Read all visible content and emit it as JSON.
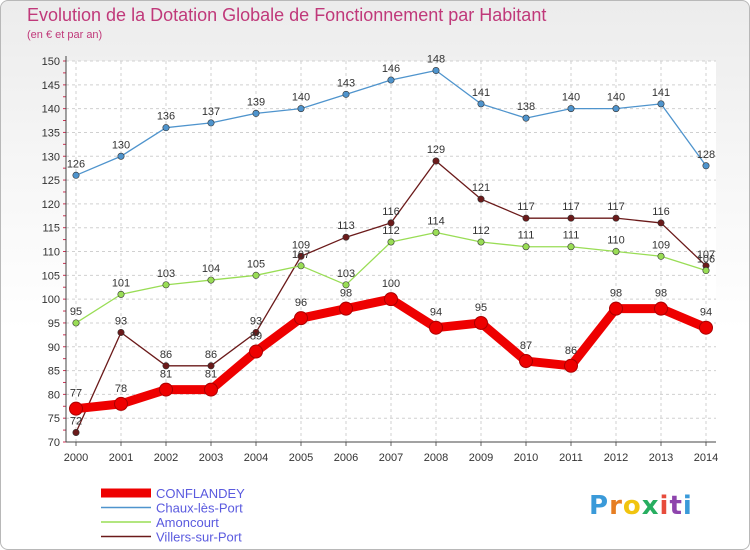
{
  "header": {
    "title": "Evolution de la Dotation Globale de Fonctionnement par Habitant",
    "subtitle": "(en € et par an)"
  },
  "logo": {
    "text": "Proxiti",
    "letters": [
      "P",
      "r",
      "o",
      "x",
      "i",
      "t",
      "i"
    ]
  },
  "chart_data": {
    "type": "line",
    "title": "Evolution de la Dotation Globale de Fonctionnement par Habitant",
    "subtitle": "(en € et par an)",
    "xlabel": "",
    "ylabel": "",
    "ylim": [
      70,
      150
    ],
    "yticks": [
      70,
      75,
      80,
      85,
      90,
      95,
      100,
      105,
      110,
      115,
      120,
      125,
      130,
      135,
      140,
      145,
      150
    ],
    "grid": true,
    "legend_position": "bottom-left",
    "x": [
      "2000",
      "2001",
      "2002",
      "2003",
      "2004",
      "2005",
      "2006",
      "2007",
      "2008",
      "2009",
      "2010",
      "2011",
      "2012",
      "2013",
      "2014"
    ],
    "series": [
      {
        "name": "Villers-sur-Port",
        "color": "#6b1a1a",
        "values": [
          72,
          93,
          86,
          86,
          93,
          109,
          113,
          116,
          129,
          121,
          117,
          117,
          117,
          116,
          107
        ]
      },
      {
        "name": "Amoncourt",
        "color": "#99dd55",
        "values": [
          95,
          101,
          103,
          104,
          105,
          107,
          103,
          112,
          114,
          112,
          111,
          111,
          110,
          109,
          106
        ]
      },
      {
        "name": "Chaux-lès-Port",
        "color": "#4f94cd",
        "values": [
          126,
          130,
          136,
          137,
          139,
          140,
          143,
          146,
          148,
          141,
          138,
          140,
          140,
          141,
          128
        ]
      },
      {
        "name": "CONFLANDEY",
        "color": "#ee0000",
        "values": [
          77,
          78,
          81,
          81,
          89,
          96,
          98,
          100,
          94,
          95,
          87,
          86,
          98,
          98,
          94
        ]
      }
    ],
    "legend": [
      "CONFLANDEY",
      "Chaux-lès-Port",
      "Amoncourt",
      "Villers-sur-Port"
    ]
  }
}
